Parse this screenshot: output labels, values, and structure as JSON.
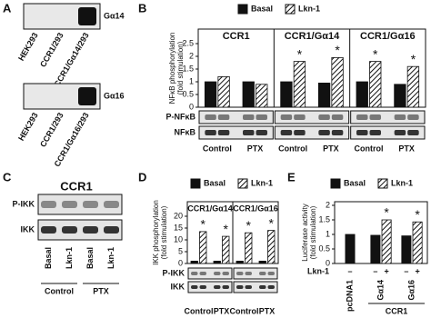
{
  "panels": {
    "A": {
      "label": "A",
      "blots": [
        {
          "protein": "Gα14",
          "lanes": [
            "HEK293",
            "CCR1/293",
            "CCR1/Gα14/293"
          ]
        },
        {
          "protein": "Gα16",
          "lanes": [
            "HEK293",
            "CCR1/293",
            "CCR1/Gα16/293"
          ]
        }
      ]
    },
    "C": {
      "label": "C",
      "title": "CCR1",
      "rows": [
        "P-IKK",
        "IKK"
      ],
      "lanes": [
        "Basal",
        "Lkn-1",
        "Basal",
        "Lkn-1"
      ],
      "groups": [
        "Control",
        "PTX"
      ]
    }
  },
  "chart_data": [
    {
      "type": "bar",
      "label": "B",
      "ylabel": [
        "NFκB phosphorylation",
        "(fold stimulation)"
      ],
      "groups": [
        "CCR1",
        "CCR1/Gα14",
        "CCR1/Gα16"
      ],
      "categories": [
        "Control",
        "PTX",
        "Control",
        "PTX",
        "Control",
        "PTX"
      ],
      "series": [
        {
          "name": "Basal",
          "color": "#111111",
          "values": [
            1.0,
            1.0,
            1.0,
            0.95,
            1.0,
            0.9
          ]
        },
        {
          "name": "Lkn-1",
          "color": "#111111",
          "pattern": "hatch",
          "values": [
            1.2,
            0.9,
            1.8,
            1.95,
            1.8,
            1.6
          ],
          "annotations": [
            null,
            null,
            "*",
            "*",
            "*",
            "*"
          ]
        }
      ],
      "ylim": [
        0,
        2.5
      ],
      "yticks": [
        0,
        0.5,
        1,
        1.5,
        2,
        2.5
      ],
      "blot_rows": [
        "P-NFκB",
        "NFκB"
      ]
    },
    {
      "type": "bar",
      "label": "D",
      "ylabel": [
        "IKK phosphorylation",
        "(fold stimulation)"
      ],
      "groups": [
        "CCR1/Gα14",
        "CCR1/Gα16"
      ],
      "categories": [
        "Control",
        "PTX",
        "Control",
        "PTX"
      ],
      "series": [
        {
          "name": "Basal",
          "color": "#111111",
          "values": [
            1,
            1,
            1,
            1
          ]
        },
        {
          "name": "Lkn-1",
          "color": "#111111",
          "pattern": "hatch",
          "values": [
            13.5,
            11.5,
            13,
            14
          ],
          "annotations": [
            "*",
            "*",
            "*",
            "*"
          ]
        }
      ],
      "ylim": [
        0,
        20
      ],
      "yticks": [
        0,
        5,
        10,
        15,
        20
      ],
      "blot_rows": [
        "P-IKK",
        "IKK"
      ]
    },
    {
      "type": "bar",
      "label": "E",
      "ylabel": [
        "Luciferase activity",
        "(fold stimulation)"
      ],
      "categories": [
        "pcDNA1",
        "Gα14",
        "Gα16"
      ],
      "series": [
        {
          "name": "Basal",
          "color": "#111111",
          "values": [
            1.0,
            0.97,
            0.95
          ],
          "row_marks": [
            "–",
            "–",
            "–"
          ]
        },
        {
          "name": "Lkn-1",
          "color": "#111111",
          "pattern": "hatch",
          "values": [
            null,
            1.5,
            1.43
          ],
          "row_marks": [
            null,
            "+",
            "+"
          ],
          "annotations": [
            null,
            "*",
            "*"
          ]
        }
      ],
      "ylim": [
        0,
        2
      ],
      "yticks": [
        0,
        0.5,
        1,
        1.5,
        2
      ],
      "row_label": "Lkn-1",
      "span_label": "CCR1"
    }
  ]
}
